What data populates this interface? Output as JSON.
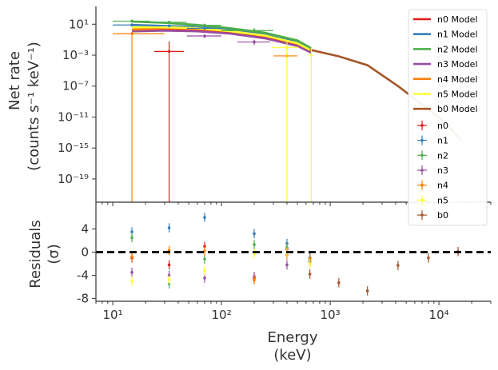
{
  "chart_data": [
    {
      "type": "line",
      "panel": "spectrum",
      "ylabel_line1": "Net rate",
      "ylabel_line2": "(counts s⁻¹ keV⁻¹)",
      "x_scale": "log",
      "y_scale": "log",
      "xlim": [
        7,
        30000
      ],
      "ylim": [
        1e-22,
        2000
      ],
      "y_ticks": [
        {
          "v": 10,
          "label": "10¹"
        },
        {
          "v": 0.001,
          "label": "10⁻³"
        },
        {
          "v": 1e-07,
          "label": "10⁻⁷"
        },
        {
          "v": 1e-11,
          "label": "10⁻¹¹"
        },
        {
          "v": 1e-15,
          "label": "10⁻¹⁵"
        },
        {
          "v": 1e-19,
          "label": "10⁻¹⁹"
        }
      ],
      "legend_position": "right",
      "models": [
        {
          "name": "n0 Model",
          "color": "#e41a1c",
          "x": [
            15,
            30,
            60,
            120,
            250,
            500,
            670
          ],
          "y": [
            1.5,
            2,
            1.8,
            0.9,
            0.2,
            0.02,
            0.003
          ]
        },
        {
          "name": "n1 Model",
          "color": "#377eb8",
          "x": [
            15,
            30,
            60,
            120,
            250,
            500,
            670
          ],
          "y": [
            8,
            6,
            4,
            1.8,
            0.5,
            0.05,
            0.005
          ]
        },
        {
          "name": "n2 Model",
          "color": "#4daf4a",
          "x": [
            15,
            30,
            60,
            120,
            250,
            500,
            670
          ],
          "y": [
            22,
            15,
            8,
            3,
            0.8,
            0.08,
            0.008
          ]
        },
        {
          "name": "n3 Model",
          "color": "#984ea3",
          "x": [
            15,
            30,
            60,
            120,
            250,
            500,
            670
          ],
          "y": [
            1.2,
            1.5,
            1.2,
            0.6,
            0.15,
            0.015,
            0.002
          ]
        },
        {
          "name": "n4 Model",
          "color": "#ff7f00",
          "x": [
            15,
            30,
            60,
            120,
            250,
            500,
            670
          ],
          "y": [
            2,
            3,
            2.5,
            1.2,
            0.3,
            0.03,
            0.004
          ]
        },
        {
          "name": "n5 Model",
          "color": "#ffff33",
          "x": [
            15,
            30,
            60,
            120,
            250,
            500,
            670
          ],
          "y": [
            4,
            4,
            3,
            1.3,
            0.35,
            0.035,
            0.004
          ]
        },
        {
          "name": "b0 Model",
          "color": "#a65628",
          "x": [
            650,
            1200,
            2200,
            4200,
            8000,
            12000,
            16000
          ],
          "y": [
            0.005,
            0.0007,
            5e-05,
            1e-07,
            1e-10,
            1e-12,
            1e-14
          ]
        }
      ],
      "series": [
        {
          "name": "n0",
          "color": "#e41a1c",
          "points": [
            {
              "x": 33,
              "xlo": 24,
              "xhi": 45,
              "y": 0.003,
              "ylo": 1e-22,
              "yhi": 0.06
            }
          ]
        },
        {
          "name": "n1",
          "color": "#377eb8",
          "points": [
            {
              "x": 15,
              "xlo": 10,
              "xhi": 22,
              "y": 8,
              "ylo": 5,
              "yhi": 12
            },
            {
              "x": 33,
              "xlo": 22,
              "xhi": 48,
              "y": 6,
              "ylo": 4,
              "yhi": 9
            },
            {
              "x": 70,
              "xlo": 48,
              "xhi": 100,
              "y": 3,
              "ylo": 2,
              "yhi": 5
            }
          ]
        },
        {
          "name": "n2",
          "color": "#4daf4a",
          "points": [
            {
              "x": 15,
              "xlo": 10,
              "xhi": 22,
              "y": 25,
              "ylo": 15,
              "yhi": 40
            },
            {
              "x": 33,
              "xlo": 22,
              "xhi": 48,
              "y": 18,
              "ylo": 12,
              "yhi": 28
            },
            {
              "x": 70,
              "xlo": 48,
              "xhi": 100,
              "y": 7,
              "ylo": 4,
              "yhi": 12
            },
            {
              "x": 200,
              "xlo": 100,
              "xhi": 300,
              "y": 1.5,
              "ylo": 0.8,
              "yhi": 3
            }
          ]
        },
        {
          "name": "n3",
          "color": "#984ea3",
          "points": [
            {
              "x": 70,
              "xlo": 48,
              "xhi": 100,
              "y": 0.3,
              "ylo": 0.15,
              "yhi": 0.5
            },
            {
              "x": 200,
              "xlo": 140,
              "xhi": 280,
              "y": 0.05,
              "ylo": 0.02,
              "yhi": 0.1
            }
          ]
        },
        {
          "name": "n4",
          "color": "#ff7f00",
          "points": [
            {
              "x": 15,
              "xlo": 10,
              "xhi": 30,
              "y": 0.6,
              "ylo": 1e-22,
              "yhi": 1
            },
            {
              "x": 400,
              "xlo": 300,
              "xhi": 500,
              "y": 0.0008,
              "ylo": 0.0004,
              "yhi": 0.002
            }
          ]
        },
        {
          "name": "n5",
          "color": "#ffff33",
          "points": [
            {
              "x": 400,
              "xlo": 290,
              "xhi": 510,
              "y": 0.01,
              "ylo": 1e-22,
              "yhi": 0.05
            },
            {
              "x": 670,
              "xlo": 650,
              "xhi": 690,
              "y": 0.001,
              "ylo": 1e-22,
              "yhi": 0.01
            }
          ]
        },
        {
          "name": "b0",
          "color": "#a65628",
          "points": []
        }
      ]
    },
    {
      "type": "scatter",
      "panel": "residuals",
      "ylabel_line1": "Residuals",
      "ylabel_line2": "(σ)",
      "xlabel_line1": "Energy",
      "xlabel_line2": "(keV)",
      "x_scale": "log",
      "xlim": [
        7,
        30000
      ],
      "ylim": [
        -8.5,
        8.5
      ],
      "y_ticks": [
        4,
        0,
        -4,
        -8
      ],
      "x_ticks": [
        {
          "v": 10,
          "label": "10¹"
        },
        {
          "v": 100,
          "label": "10²"
        },
        {
          "v": 1000,
          "label": "10³"
        },
        {
          "v": 10000,
          "label": "10⁴"
        }
      ],
      "zero_line": true,
      "series": [
        {
          "name": "n0",
          "color": "#e41a1c",
          "points": [
            {
              "x": 15,
              "y": -1,
              "err": 0.8
            },
            {
              "x": 33,
              "y": -2.2,
              "err": 0.8
            },
            {
              "x": 70,
              "y": 1,
              "err": 0.8
            },
            {
              "x": 200,
              "y": -4.5,
              "err": 0.8
            },
            {
              "x": 400,
              "y": 0.5,
              "err": 0.8
            },
            {
              "x": 650,
              "y": -1,
              "err": 0.8
            }
          ]
        },
        {
          "name": "n1",
          "color": "#377eb8",
          "points": [
            {
              "x": 15,
              "y": 3.5,
              "err": 0.8
            },
            {
              "x": 33,
              "y": 4.2,
              "err": 0.8
            },
            {
              "x": 70,
              "y": 6,
              "err": 0.8
            },
            {
              "x": 200,
              "y": 3.2,
              "err": 0.8
            },
            {
              "x": 400,
              "y": 1.5,
              "err": 0.8
            },
            {
              "x": 650,
              "y": -1,
              "err": 0.8
            }
          ]
        },
        {
          "name": "n2",
          "color": "#4daf4a",
          "points": [
            {
              "x": 15,
              "y": 2.5,
              "err": 0.8
            },
            {
              "x": 33,
              "y": -5.5,
              "err": 0.8
            },
            {
              "x": 70,
              "y": -1.2,
              "err": 0.8
            },
            {
              "x": 200,
              "y": 1.3,
              "err": 0.8
            },
            {
              "x": 400,
              "y": 0.8,
              "err": 0.8
            },
            {
              "x": 650,
              "y": -1.5,
              "err": 0.8
            }
          ]
        },
        {
          "name": "n3",
          "color": "#984ea3",
          "points": [
            {
              "x": 15,
              "y": -3.5,
              "err": 0.8
            },
            {
              "x": 33,
              "y": -4,
              "err": 0.8
            },
            {
              "x": 70,
              "y": -4.5,
              "err": 0.8
            },
            {
              "x": 200,
              "y": -4.2,
              "err": 0.8
            },
            {
              "x": 400,
              "y": -2.2,
              "err": 0.8
            },
            {
              "x": 650,
              "y": -1.8,
              "err": 0.8
            }
          ]
        },
        {
          "name": "n4",
          "color": "#ff7f00",
          "points": [
            {
              "x": 15,
              "y": -0.8,
              "err": 0.8
            },
            {
              "x": 33,
              "y": 0.3,
              "err": 0.8
            },
            {
              "x": 70,
              "y": 0.2,
              "err": 0.8
            },
            {
              "x": 200,
              "y": -4.8,
              "err": 0.8
            },
            {
              "x": 400,
              "y": -0.5,
              "err": 0.8
            },
            {
              "x": 650,
              "y": -1.2,
              "err": 0.8
            }
          ]
        },
        {
          "name": "n5",
          "color": "#ffff33",
          "points": [
            {
              "x": 15,
              "y": -5,
              "err": 0.8
            },
            {
              "x": 33,
              "y": -4.8,
              "err": 0.8
            },
            {
              "x": 70,
              "y": -3.2,
              "err": 0.8
            },
            {
              "x": 200,
              "y": -0.3,
              "err": 0.8
            },
            {
              "x": 400,
              "y": 0,
              "err": 0.8
            },
            {
              "x": 650,
              "y": -2,
              "err": 0.8
            }
          ]
        },
        {
          "name": "b0",
          "color": "#a65628",
          "points": [
            {
              "x": 650,
              "y": -3.8,
              "err": 0.8
            },
            {
              "x": 1200,
              "y": -5.3,
              "err": 0.8
            },
            {
              "x": 2200,
              "y": -6.7,
              "err": 0.8
            },
            {
              "x": 4200,
              "y": -2.3,
              "err": 0.8
            },
            {
              "x": 8000,
              "y": -1,
              "err": 0.8
            },
            {
              "x": 15000,
              "y": 0.1,
              "err": 0.8
            }
          ]
        }
      ]
    }
  ]
}
